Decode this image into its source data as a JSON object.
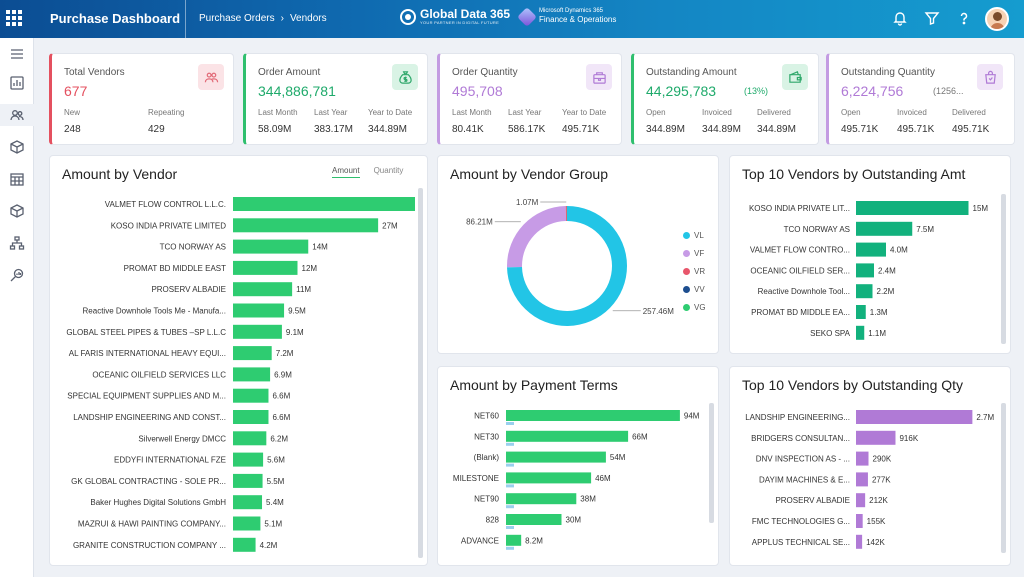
{
  "header": {
    "app_title": "Purchase Dashboard",
    "breadcrumb": [
      "Purchase Orders",
      "Vendors"
    ],
    "gd_brand": "Global Data 365",
    "gd_tagline": "YOUR PARTNER IN DIGITAL FUTURE",
    "ms_line1": "Microsoft Dynamics 365",
    "ms_line2": "Finance & Operations"
  },
  "sidebar": {
    "icons": [
      "menu-icon",
      "analytics-icon",
      "users-icon",
      "package-icon",
      "calendar-grid-icon",
      "box-icon",
      "org-chart-icon",
      "search-analytics-icon"
    ]
  },
  "kpis": [
    {
      "label": "Total Vendors",
      "value": "677",
      "color": "#e4505f",
      "icon": "users-icon",
      "icon_bg": "#fbe3e6",
      "icon_color": "#e26b78",
      "accent": "#e4505f",
      "subs": [
        {
          "label": "New",
          "value": "248"
        },
        {
          "label": "Repeating",
          "value": "429"
        }
      ]
    },
    {
      "label": "Order Amount",
      "value": "344,886,781",
      "color": "#1faa6b",
      "icon": "money-bag-icon",
      "icon_bg": "#d9f3e5",
      "icon_color": "#2fa86b",
      "accent": "#2fbf6e",
      "subs": [
        {
          "label": "Last Month",
          "value": "58.09M"
        },
        {
          "label": "Last Year",
          "value": "383.17M"
        },
        {
          "label": "Year to Date",
          "value": "344.89M"
        }
      ]
    },
    {
      "label": "Order Quantity",
      "value": "495,708",
      "color": "#b07ad6",
      "icon": "cart-icon",
      "icon_bg": "#f1e6f8",
      "icon_color": "#b07ad6",
      "accent": "#c39be2",
      "subs": [
        {
          "label": "Last Month",
          "value": "80.41K"
        },
        {
          "label": "Last Year",
          "value": "586.17K"
        },
        {
          "label": "Year to Date",
          "value": "495.71K"
        }
      ]
    },
    {
      "label": "Outstanding Amount",
      "value": "44,295,783",
      "extra": "(13%)",
      "color": "#1faa6b",
      "icon": "wallet-icon",
      "icon_bg": "#d9f3e5",
      "icon_color": "#2fa86b",
      "accent": "#2fbf6e",
      "subs": [
        {
          "label": "Open",
          "value": "344.89M"
        },
        {
          "label": "Invoiced",
          "value": "344.89M"
        },
        {
          "label": "Delivered",
          "value": "344.89M"
        }
      ]
    },
    {
      "label": "Outstanding Quantity",
      "value": "6,224,756",
      "extra": "(1256...",
      "color": "#b07ad6",
      "icon": "shopping-bag-icon",
      "icon_bg": "#f1e6f8",
      "icon_color": "#b07ad6",
      "accent": "#c39be2",
      "subs": [
        {
          "label": "Open",
          "value": "495.71K"
        },
        {
          "label": "Invoiced",
          "value": "495.71K"
        },
        {
          "label": "Delivered",
          "value": "495.71K"
        }
      ]
    }
  ],
  "panels": {
    "amount_by_vendor": "Amount by Vendor",
    "tab_amount": "Amount",
    "tab_quantity": "Quantity",
    "vendor_group": "Amount by Vendor Group",
    "top_outstanding_amt": "Top 10 Vendors by Outstanding Amt",
    "payment_terms": "Amount by Payment Terms",
    "top_outstanding_qty": "Top 10 Vendors by Outstanding Qty"
  },
  "chart_data": [
    {
      "type": "bar",
      "orientation": "horizontal",
      "title": "Amount by Vendor",
      "color": "#2ecc71",
      "categories": [
        "VALMET FLOW CONTROL L.L.C.",
        "KOSO INDIA PRIVATE LIMITED",
        "TCO NORWAY AS",
        "PROMAT BD MIDDLE EAST",
        "PROSERV ALBADIE",
        "Reactive Downhole Tools Me - Manufa...",
        "GLOBAL STEEL PIPES & TUBES –SP L.L.C",
        "AL FARIS INTERNATIONAL HEAVY EQUI...",
        "OCEANIC OILFIELD SERVICES LLC",
        "SPECIAL EQUIPMENT SUPPLIES AND M...",
        "LANDSHIP ENGINEERING AND CONST...",
        "Silverwell Energy DMCC",
        "EDDYFI INTERNATIONAL FZE",
        "GK GLOBAL CONTRACTING - SOLE PR...",
        "Baker Hughes Digital Solutions GmbH",
        "MAZRUI & HAWI PAINTING COMPANY...",
        "GRANITE CONSTRUCTION COMPANY ..."
      ],
      "values": [
        37,
        27,
        14,
        12,
        11,
        9.5,
        9.1,
        7.2,
        6.9,
        6.6,
        6.6,
        6.2,
        5.6,
        5.5,
        5.4,
        5.1,
        4.2
      ],
      "labels": [
        "37M",
        "27M",
        "14M",
        "12M",
        "11M",
        "9.5M",
        "9.1M",
        "7.2M",
        "6.9M",
        "6.6M",
        "6.6M",
        "6.2M",
        "5.6M",
        "5.5M",
        "5.4M",
        "5.1M",
        "4.2M"
      ],
      "xmax": 40
    },
    {
      "type": "pie",
      "donut": true,
      "title": "Amount by Vendor Group",
      "slices": [
        {
          "name": "VL",
          "value": 257.46,
          "label": "257.46M",
          "color": "#22c5e6"
        },
        {
          "name": "VF",
          "value": 86.21,
          "label": "86.21M",
          "color": "#c79be6"
        },
        {
          "name": "VR",
          "value": 1.07,
          "label": "1.07M",
          "color": "#e8566b"
        },
        {
          "name": "VV",
          "value": 0.05,
          "label": "",
          "color": "#1d4e8f"
        },
        {
          "name": "VG",
          "value": 0.05,
          "label": "",
          "color": "#2ecc71"
        }
      ],
      "legend_position": "right"
    },
    {
      "type": "bar",
      "orientation": "horizontal",
      "title": "Top 10 Vendors by Outstanding Amt",
      "color": "#12b17d",
      "categories": [
        "KOSO INDIA PRIVATE LIT...",
        "TCO NORWAY AS",
        "VALMET FLOW CONTRO...",
        "OCEANIC OILFIELD SER...",
        "Reactive Downhole Tool...",
        "PROMAT BD MIDDLE EA...",
        "SEKO SPA"
      ],
      "values": [
        15,
        7.5,
        4.0,
        2.4,
        2.2,
        1.3,
        1.1
      ],
      "labels": [
        "15M",
        "7.5M",
        "4.0M",
        "2.4M",
        "2.2M",
        "1.3M",
        "1.1M"
      ],
      "xmax": 16
    },
    {
      "type": "bar",
      "orientation": "horizontal",
      "title": "Amount by Payment Terms",
      "color": "#2ecc71",
      "secondary_color": "#9ad0ee",
      "categories": [
        "NET60",
        "NET30",
        "(Blank)",
        "MILESTONE",
        "NET90",
        "828",
        "ADVANCE"
      ],
      "values": [
        94,
        66,
        54,
        46,
        38,
        30,
        8.2
      ],
      "labels": [
        "94M",
        "66M",
        "54M",
        "46M",
        "38M",
        "30M",
        "8.2M"
      ],
      "xmax": 100
    },
    {
      "type": "bar",
      "orientation": "horizontal",
      "title": "Top 10 Vendors by Outstanding Qty",
      "color": "#b07ad6",
      "categories": [
        "LANDSHIP ENGINEERING...",
        "BRIDGERS CONSULTAN...",
        "DNV INSPECTION AS - ...",
        "DAYIM MACHINES & E...",
        "PROSERV ALBADIE",
        "FMC TECHNOLOGIES G...",
        "APPLUS TECHNICAL SE..."
      ],
      "values": [
        2700,
        916,
        290,
        277,
        212,
        155,
        142
      ],
      "labels": [
        "2.7M",
        "916K",
        "290K",
        "277K",
        "212K",
        "155K",
        "142K"
      ],
      "xmax": 2900
    }
  ]
}
